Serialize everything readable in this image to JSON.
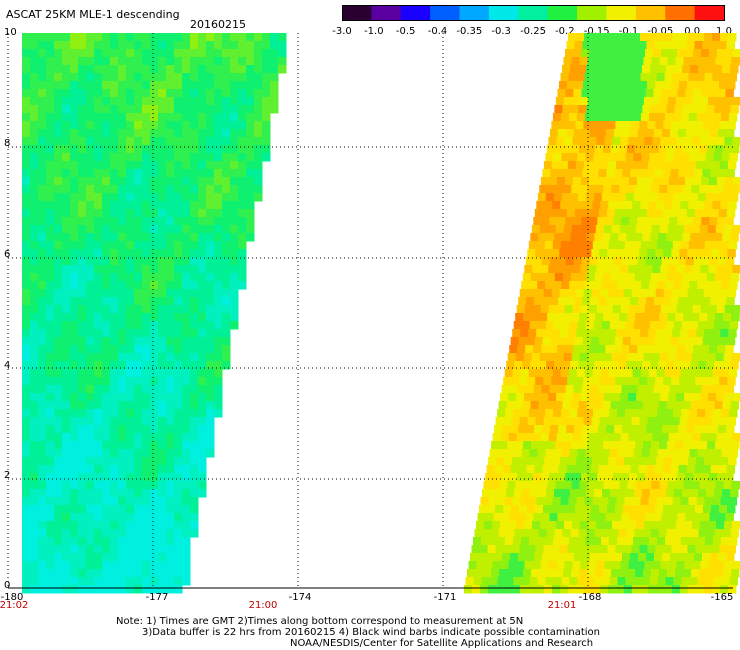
{
  "header": {
    "title": "ASCAT 25KM MLE-1 descending",
    "date": "20160215"
  },
  "colorbar": {
    "ticks": [
      "-3.0",
      "-1.0",
      "-0.5",
      "-0.4",
      "-0.35",
      "-0.3",
      "-0.25",
      "-0.2",
      "-0.15",
      "-0.1",
      "-0.05",
      "0.0",
      "1.0"
    ],
    "colors": [
      "#2a0030",
      "#5a00a0",
      "#1a00ff",
      "#0060ff",
      "#00a8ff",
      "#00e8e8",
      "#00f0a0",
      "#20f040",
      "#a0f000",
      "#f0f000",
      "#ffc000",
      "#ff7000",
      "#ff1010"
    ]
  },
  "axes": {
    "lat_labels": [
      "10",
      "8",
      "6",
      "4",
      "2",
      "0"
    ],
    "lon_labels": [
      "-180",
      "-177",
      "-174",
      "-171",
      "-168",
      "-165"
    ],
    "time_labels": [
      "21:02",
      "21:00",
      "21:01"
    ]
  },
  "notes": {
    "line1": "Note: 1) Times are GMT 2)Times along bottom correspond to measurement at 5N",
    "line2": "3)Data buffer is 22 hrs from 20160215 4) Black wind barbs indicate possible contamination",
    "line3": "NOAA/NESDIS/Center for Satellite Applications and Research"
  }
}
